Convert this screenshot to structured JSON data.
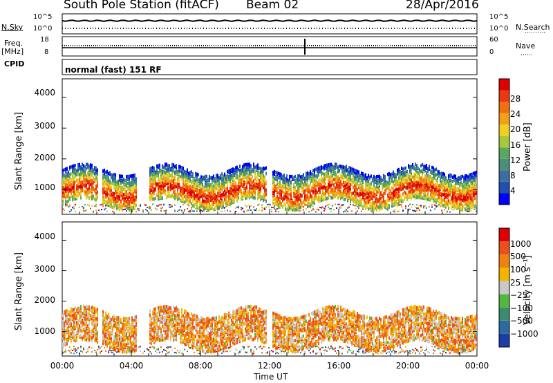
{
  "header": {
    "station": "South Pole Station (fitACF)",
    "beam": "Beam 02",
    "date": "28/Apr/2016"
  },
  "top_panel": {
    "left_label": "N.Sky",
    "right_label": "N.Search",
    "left_ticks": [
      "10^5",
      "10^0"
    ],
    "right_ticks": [
      "10^5",
      "10^0"
    ]
  },
  "freq_panel": {
    "left_label_1": "Freq.",
    "left_label_2": "[MHz]",
    "right_label": "Nave",
    "left_ticks": [
      "18",
      "8"
    ],
    "right_ticks": [
      "60",
      "0"
    ]
  },
  "cpid": {
    "label": "CPID",
    "text": "normal (fast) 151 RF"
  },
  "x_axis": {
    "label": "Time UT",
    "ticks": [
      "00:00",
      "04:00",
      "08:00",
      "12:00",
      "16:00",
      "20:00",
      "00:00"
    ]
  },
  "chart_data": [
    {
      "type": "heatmap",
      "title": "",
      "ylabel": "Slant Range [km]",
      "xlabel": "Time UT",
      "xlim_hours": [
        0,
        24
      ],
      "ylim": [
        200,
        4600
      ],
      "yticks": [
        "4000",
        "3000",
        "2000",
        "1000"
      ],
      "colorbar": {
        "label": "Power [dB]",
        "ticks": [
          "28",
          "24",
          "20",
          "16",
          "12",
          "8",
          "4"
        ],
        "range": [
          0,
          32
        ]
      },
      "colors": [
        "#0000ff",
        "#2050b0",
        "#3b6fa0",
        "#4a8f7a",
        "#5aa860",
        "#a8c83c",
        "#f0d020",
        "#f4a018",
        "#f07010",
        "#e83a10",
        "#e00000"
      ]
    },
    {
      "type": "heatmap",
      "title": "",
      "ylabel": "Slant Range [km]",
      "xlabel": "Time UT",
      "xlim_hours": [
        0,
        24
      ],
      "ylim": [
        200,
        4600
      ],
      "yticks": [
        "4000",
        "3000",
        "2000",
        "1000"
      ],
      "colorbar": {
        "label": "Velocity [m s⁻¹]",
        "ticks": [
          "1000",
          "500",
          "100",
          "25",
          "−25",
          "−100",
          "−500",
          "−1000"
        ]
      },
      "colors": [
        "#1c3ca8",
        "#2d6aa0",
        "#3d8a70",
        "#52b83c",
        "#c8c8c8",
        "#f4b400",
        "#f08010",
        "#e85020",
        "#e00000"
      ]
    }
  ]
}
